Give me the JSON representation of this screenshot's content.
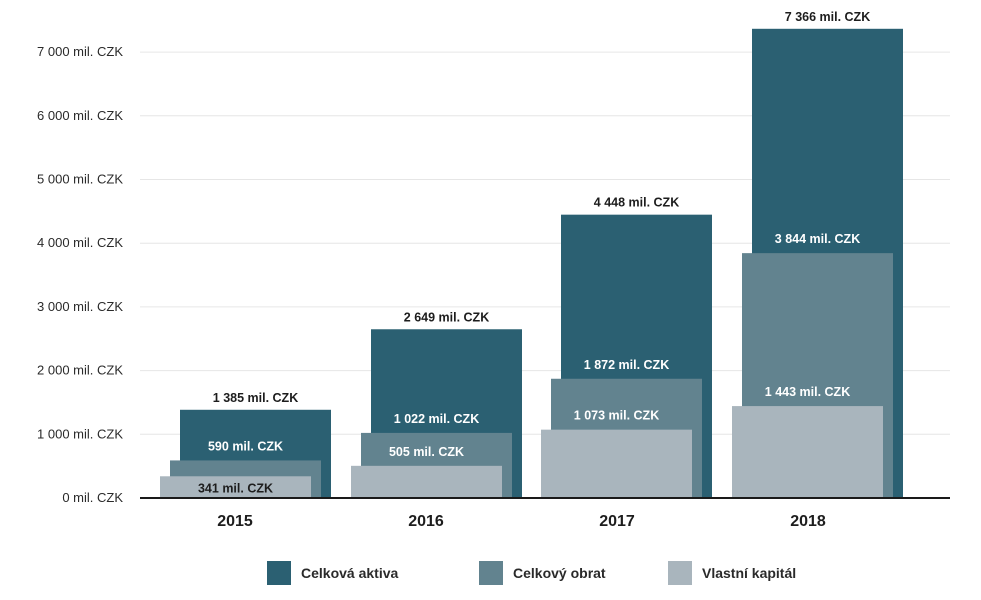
{
  "chart_data": {
    "type": "bar",
    "categories": [
      "2015",
      "2016",
      "2017",
      "2018"
    ],
    "series": [
      {
        "name": "Celková aktiva",
        "color": "#2b6072",
        "values": [
          1385,
          2649,
          4448,
          7366
        ],
        "labels": [
          "1 385 mil. CZK",
          "2 649 mil. CZK",
          "4 448 mil. CZK",
          "7 366 mil. CZK"
        ]
      },
      {
        "name": "Celkový obrat",
        "color": "#62838f",
        "values": [
          590,
          1022,
          1872,
          3844
        ],
        "labels": [
          "590 mil. CZK",
          "1 022 mil. CZK",
          "1 872 mil. CZK",
          "3 844 mil. CZK"
        ]
      },
      {
        "name": "Vlastní kapitál",
        "color": "#a9b5bd",
        "values": [
          341,
          505,
          1073,
          1443
        ],
        "labels": [
          "341 mil. CZK",
          "505 mil. CZK",
          "1 073 mil. CZK",
          "1 443 mil. CZK"
        ]
      }
    ],
    "y_ticks": [
      0,
      1000,
      2000,
      3000,
      4000,
      5000,
      6000,
      7000
    ],
    "y_tick_labels": [
      "0 mil. CZK",
      "1 000 mil. CZK",
      "2 000 mil. CZK",
      "3 000 mil. CZK",
      "4 000 mil. CZK",
      "5 000 mil. CZK",
      "6 000 mil. CZK",
      "7 000 mil. CZK"
    ],
    "ylim": [
      0,
      7300
    ],
    "grid": true,
    "legend_position": "bottom"
  }
}
